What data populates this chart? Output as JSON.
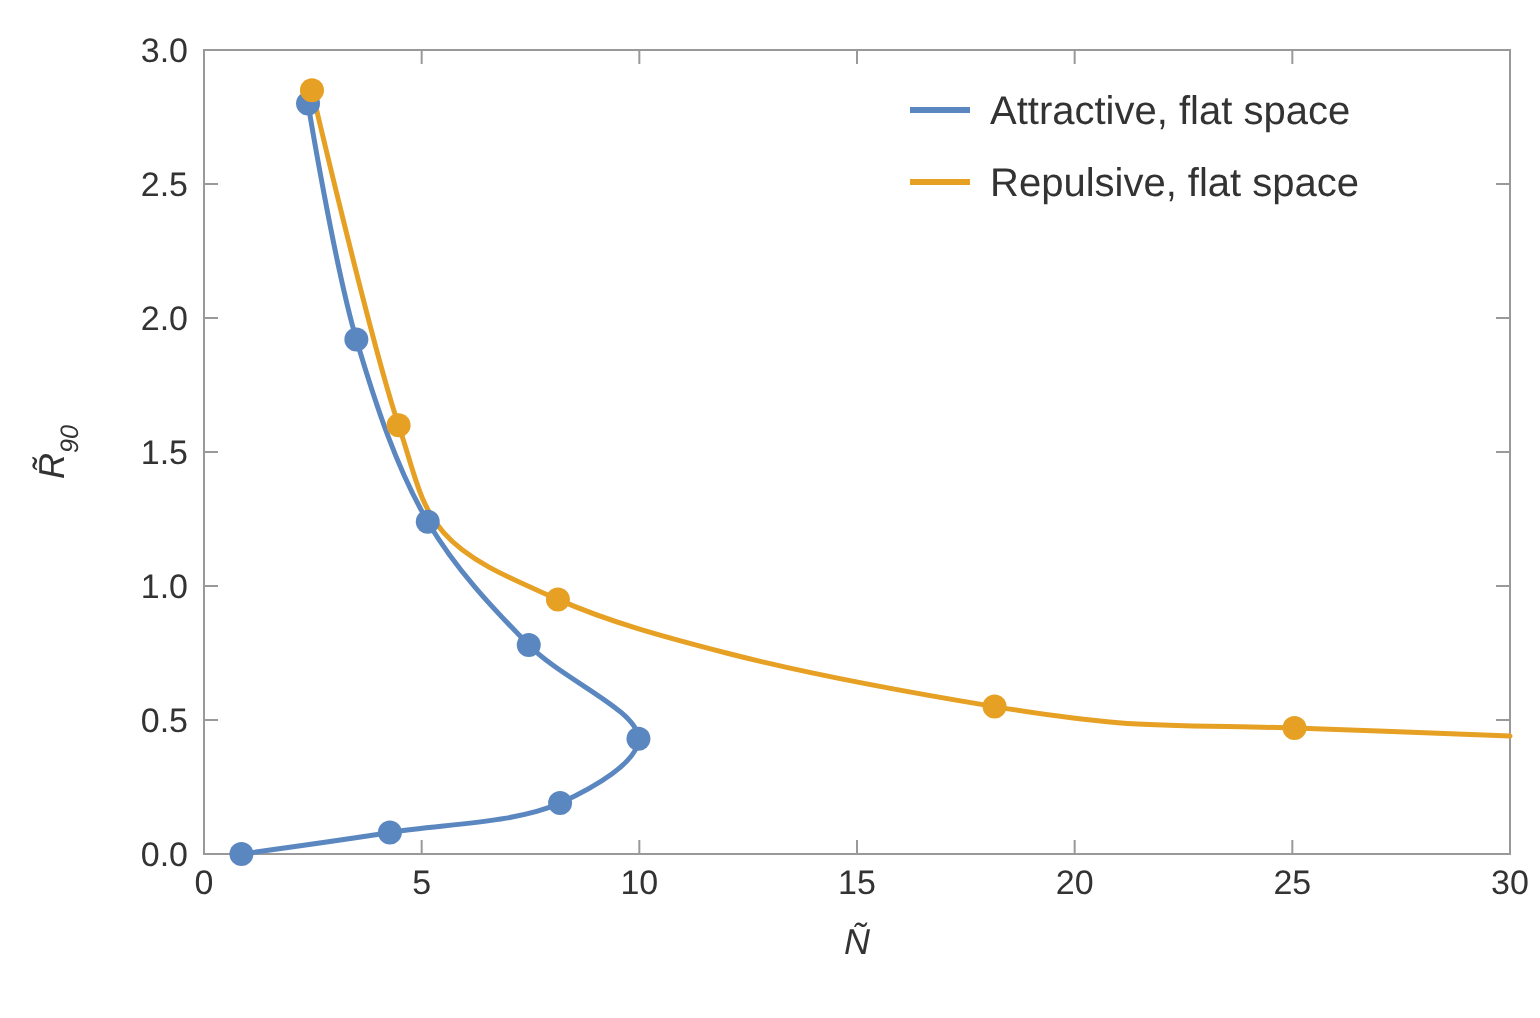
{
  "chart_data": {
    "type": "line",
    "xlabel": "Ñ",
    "ylabel": "R̃$_{90}$",
    "xlim": [
      0,
      30
    ],
    "xticks": [
      0,
      5,
      10,
      15,
      20,
      25,
      30
    ],
    "ylim": [
      0,
      3
    ],
    "yticks": [
      {
        "value": 0,
        "label": "0.0"
      },
      {
        "value": 0.5,
        "label": "0.5"
      },
      {
        "value": 1,
        "label": "1.0"
      },
      {
        "value": 1.5,
        "label": "1.5"
      },
      {
        "value": 2,
        "label": "2.0"
      },
      {
        "value": 2.5,
        "label": "2.5"
      },
      {
        "value": 3,
        "label": "3.0"
      }
    ],
    "grid": false,
    "legend": "top right",
    "marker": "none",
    "line_style": "solid",
    "series": [
      {
        "name": "Attractive, flat space",
        "color": "#5b87c0",
        "x": [
          2.39,
          3.5,
          5.14,
          7.46,
          9.98,
          8.18,
          4.27,
          0.86
        ],
        "values": [
          2.8,
          1.92,
          1.24,
          0.78,
          0.43,
          0.19,
          0.08,
          0.0
        ]
      },
      {
        "name": "Repulsive, flat space",
        "color": "#e6a024",
        "x": [
          2.48,
          4.47,
          5.5,
          8.13,
          12,
          18.16,
          21,
          25.05,
          30
        ],
        "values": [
          2.85,
          1.6,
          1.2,
          0.95,
          0.75,
          0.55,
          0.49,
          0.47,
          0.44
        ]
      },
      {
        "type": "scatter",
        "color": "#5b87c0",
        "marker": "circle",
        "x": [
          2.39,
          3.5,
          5.14,
          7.46,
          9.98,
          8.18,
          4.27,
          0.86
        ],
        "values": [
          2.8,
          1.92,
          1.24,
          0.78,
          0.43,
          0.19,
          0.08,
          0.0
        ]
      },
      {
        "type": "scatter",
        "color": "#e6a024",
        "marker": "circle",
        "x": [
          2.48,
          4.47,
          8.13,
          18.16,
          25.05
        ],
        "values": [
          2.85,
          1.6,
          0.95,
          0.55,
          0.47
        ]
      }
    ]
  }
}
